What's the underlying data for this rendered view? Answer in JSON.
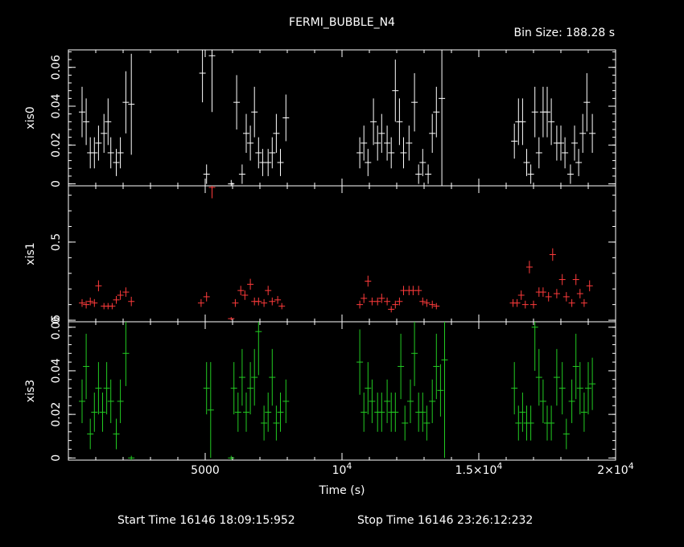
{
  "chart_data": {
    "type": "scatter",
    "title": "FERMI_BUBBLE_N4",
    "subtitle": "Bin Size: 188.28 s",
    "footer": {
      "start": "Start Time 16146 18:09:15:952",
      "stop": "Stop Time 16146 23:26:12:232"
    },
    "xlabel": "Time (s)",
    "xlim": [
      0,
      20000
    ],
    "xticks": [
      {
        "value": 5000,
        "label": "5000"
      },
      {
        "value": 10000,
        "label": "10^4"
      },
      {
        "value": 15000,
        "label": "1.5×10^4"
      },
      {
        "value": 20000,
        "label": "2×10^4"
      }
    ],
    "x_minor_ticks": [
      1000,
      2000,
      3000,
      4000,
      6000,
      7000,
      8000,
      9000,
      11000,
      12000,
      13000,
      14000,
      16000,
      17000,
      18000,
      19000
    ],
    "panels": [
      {
        "name": "xis0",
        "ylabel": "xis0",
        "color": "#ffffff",
        "ylim": [
          -0.001,
          0.069
        ],
        "yticks": [
          {
            "value": 0,
            "label": "0"
          },
          {
            "value": 0.02,
            "label": "0.02"
          },
          {
            "value": 0.04,
            "label": "0.04"
          },
          {
            "value": 0.06,
            "label": "0.06"
          }
        ],
        "points": [
          [
            500,
            0.037,
            0.013
          ],
          [
            650,
            0.032,
            0.012
          ],
          [
            800,
            0.016,
            0.008
          ],
          [
            950,
            0.016,
            0.008
          ],
          [
            1100,
            0.021,
            0.009
          ],
          [
            1300,
            0.026,
            0.01
          ],
          [
            1450,
            0.032,
            0.012
          ],
          [
            1550,
            0.016,
            0.008
          ],
          [
            1750,
            0.011,
            0.007
          ],
          [
            1900,
            0.016,
            0.008
          ],
          [
            2100,
            0.042,
            0.016
          ],
          [
            2300,
            0.041,
            0.026
          ],
          [
            4900,
            0.057,
            0.015
          ],
          [
            5050,
            0.005,
            0.005
          ],
          [
            5250,
            0.066,
            0.029
          ],
          [
            5950,
            0.0,
            0.002
          ],
          [
            6150,
            0.042,
            0.014
          ],
          [
            6350,
            0.005,
            0.005
          ],
          [
            6500,
            0.026,
            0.01
          ],
          [
            6650,
            0.021,
            0.009
          ],
          [
            6800,
            0.037,
            0.013
          ],
          [
            6950,
            0.016,
            0.008
          ],
          [
            7100,
            0.011,
            0.007
          ],
          [
            7300,
            0.011,
            0.007
          ],
          [
            7450,
            0.016,
            0.008
          ],
          [
            7600,
            0.026,
            0.01
          ],
          [
            7750,
            0.011,
            0.007
          ],
          [
            7950,
            0.034,
            0.012
          ],
          [
            10650,
            0.016,
            0.008
          ],
          [
            10800,
            0.021,
            0.009
          ],
          [
            10950,
            0.011,
            0.007
          ],
          [
            11150,
            0.032,
            0.012
          ],
          [
            11300,
            0.021,
            0.009
          ],
          [
            11450,
            0.026,
            0.01
          ],
          [
            11650,
            0.021,
            0.009
          ],
          [
            11800,
            0.016,
            0.008
          ],
          [
            11950,
            0.048,
            0.016
          ],
          [
            12100,
            0.032,
            0.012
          ],
          [
            12250,
            0.016,
            0.008
          ],
          [
            12450,
            0.021,
            0.009
          ],
          [
            12650,
            0.042,
            0.015
          ],
          [
            12800,
            0.005,
            0.005
          ],
          [
            12950,
            0.011,
            0.007
          ],
          [
            13150,
            0.005,
            0.005
          ],
          [
            13300,
            0.026,
            0.01
          ],
          [
            13450,
            0.037,
            0.013
          ],
          [
            13650,
            0.044,
            0.045
          ],
          [
            16300,
            0.022,
            0.009
          ],
          [
            16450,
            0.032,
            0.012
          ],
          [
            16600,
            0.032,
            0.012
          ],
          [
            16750,
            0.011,
            0.007
          ],
          [
            16900,
            0.005,
            0.005
          ],
          [
            17050,
            0.037,
            0.013
          ],
          [
            17200,
            0.016,
            0.008
          ],
          [
            17350,
            0.037,
            0.013
          ],
          [
            17500,
            0.037,
            0.013
          ],
          [
            17650,
            0.032,
            0.012
          ],
          [
            17850,
            0.021,
            0.009
          ],
          [
            18000,
            0.021,
            0.009
          ],
          [
            18150,
            0.016,
            0.008
          ],
          [
            18350,
            0.005,
            0.005
          ],
          [
            18500,
            0.021,
            0.009
          ],
          [
            18650,
            0.011,
            0.007
          ],
          [
            18800,
            0.026,
            0.01
          ],
          [
            18950,
            0.042,
            0.015
          ],
          [
            19150,
            0.026,
            0.01
          ]
        ]
      },
      {
        "name": "xis1",
        "ylabel": "xis1",
        "color": "#ff3b3b",
        "ylim": [
          -0.01,
          0.86
        ],
        "yticks": [
          {
            "value": 0,
            "label": "0"
          },
          {
            "value": 0.5,
            "label": "0.5"
          }
        ],
        "points": [
          [
            500,
            0.11,
            0.025
          ],
          [
            650,
            0.1,
            0.025
          ],
          [
            800,
            0.12,
            0.025
          ],
          [
            950,
            0.11,
            0.025
          ],
          [
            1100,
            0.22,
            0.035
          ],
          [
            1300,
            0.09,
            0.02
          ],
          [
            1450,
            0.09,
            0.02
          ],
          [
            1600,
            0.09,
            0.02
          ],
          [
            1750,
            0.13,
            0.025
          ],
          [
            1900,
            0.16,
            0.03
          ],
          [
            2100,
            0.18,
            0.03
          ],
          [
            2300,
            0.12,
            0.03
          ],
          [
            4850,
            0.11,
            0.025
          ],
          [
            5050,
            0.15,
            0.03
          ],
          [
            5250,
            0.85,
            0.07
          ],
          [
            5950,
            0.01,
            0.01
          ],
          [
            6100,
            0.11,
            0.025
          ],
          [
            6300,
            0.19,
            0.03
          ],
          [
            6450,
            0.16,
            0.03
          ],
          [
            6650,
            0.23,
            0.035
          ],
          [
            6800,
            0.12,
            0.025
          ],
          [
            6950,
            0.12,
            0.025
          ],
          [
            7150,
            0.11,
            0.025
          ],
          [
            7300,
            0.19,
            0.03
          ],
          [
            7450,
            0.12,
            0.025
          ],
          [
            7650,
            0.13,
            0.025
          ],
          [
            7800,
            0.09,
            0.02
          ],
          [
            10650,
            0.1,
            0.025
          ],
          [
            10800,
            0.14,
            0.03
          ],
          [
            10950,
            0.25,
            0.035
          ],
          [
            11100,
            0.12,
            0.025
          ],
          [
            11300,
            0.12,
            0.025
          ],
          [
            11450,
            0.14,
            0.03
          ],
          [
            11650,
            0.12,
            0.025
          ],
          [
            11800,
            0.07,
            0.02
          ],
          [
            11950,
            0.1,
            0.025
          ],
          [
            12100,
            0.12,
            0.025
          ],
          [
            12250,
            0.19,
            0.03
          ],
          [
            12450,
            0.19,
            0.03
          ],
          [
            12600,
            0.19,
            0.03
          ],
          [
            12800,
            0.19,
            0.03
          ],
          [
            12950,
            0.12,
            0.025
          ],
          [
            13100,
            0.11,
            0.025
          ],
          [
            13300,
            0.1,
            0.025
          ],
          [
            13450,
            0.09,
            0.02
          ],
          [
            16250,
            0.11,
            0.025
          ],
          [
            16400,
            0.11,
            0.025
          ],
          [
            16550,
            0.16,
            0.03
          ],
          [
            16700,
            0.1,
            0.025
          ],
          [
            16850,
            0.34,
            0.04
          ],
          [
            17000,
            0.1,
            0.025
          ],
          [
            17200,
            0.18,
            0.03
          ],
          [
            17350,
            0.18,
            0.03
          ],
          [
            17550,
            0.15,
            0.03
          ],
          [
            17700,
            0.42,
            0.04
          ],
          [
            17850,
            0.17,
            0.03
          ],
          [
            18050,
            0.26,
            0.035
          ],
          [
            18200,
            0.15,
            0.03
          ],
          [
            18400,
            0.11,
            0.025
          ],
          [
            18550,
            0.26,
            0.035
          ],
          [
            18700,
            0.17,
            0.03
          ],
          [
            18850,
            0.11,
            0.025
          ],
          [
            19050,
            0.22,
            0.035
          ]
        ]
      },
      {
        "name": "xis3",
        "ylabel": "xis3",
        "color": "#22cc22",
        "ylim": [
          -0.001,
          0.0625
        ],
        "yticks": [
          {
            "value": 0,
            "label": "0"
          },
          {
            "value": 0.02,
            "label": "0.02"
          },
          {
            "value": 0.04,
            "label": "0.04"
          },
          {
            "value": 0.06,
            "label": "0.06"
          }
        ],
        "points": [
          [
            500,
            0.026,
            0.01
          ],
          [
            650,
            0.042,
            0.015
          ],
          [
            800,
            0.011,
            0.007
          ],
          [
            950,
            0.021,
            0.009
          ],
          [
            1100,
            0.032,
            0.012
          ],
          [
            1250,
            0.021,
            0.009
          ],
          [
            1400,
            0.032,
            0.012
          ],
          [
            1550,
            0.026,
            0.01
          ],
          [
            1750,
            0.011,
            0.007
          ],
          [
            1900,
            0.026,
            0.01
          ],
          [
            2100,
            0.048,
            0.015
          ],
          [
            2300,
            0.0,
            0.001
          ],
          [
            5050,
            0.032,
            0.012
          ],
          [
            5200,
            0.022,
            0.022
          ],
          [
            5950,
            0.0,
            0.001
          ],
          [
            6050,
            0.032,
            0.012
          ],
          [
            6200,
            0.021,
            0.009
          ],
          [
            6350,
            0.037,
            0.013
          ],
          [
            6500,
            0.021,
            0.009
          ],
          [
            6650,
            0.032,
            0.012
          ],
          [
            6800,
            0.037,
            0.013
          ],
          [
            6950,
            0.058,
            0.02
          ],
          [
            7150,
            0.016,
            0.008
          ],
          [
            7300,
            0.021,
            0.009
          ],
          [
            7450,
            0.037,
            0.013
          ],
          [
            7600,
            0.016,
            0.008
          ],
          [
            7750,
            0.021,
            0.009
          ],
          [
            7950,
            0.026,
            0.01
          ],
          [
            10650,
            0.044,
            0.015
          ],
          [
            10800,
            0.021,
            0.009
          ],
          [
            10950,
            0.032,
            0.012
          ],
          [
            11100,
            0.026,
            0.01
          ],
          [
            11300,
            0.021,
            0.009
          ],
          [
            11450,
            0.021,
            0.009
          ],
          [
            11650,
            0.026,
            0.01
          ],
          [
            11800,
            0.021,
            0.009
          ],
          [
            11950,
            0.021,
            0.009
          ],
          [
            12150,
            0.042,
            0.015
          ],
          [
            12300,
            0.016,
            0.008
          ],
          [
            12500,
            0.026,
            0.01
          ],
          [
            12650,
            0.048,
            0.015
          ],
          [
            12800,
            0.021,
            0.009
          ],
          [
            12950,
            0.021,
            0.009
          ],
          [
            13100,
            0.016,
            0.008
          ],
          [
            13300,
            0.026,
            0.01
          ],
          [
            13450,
            0.042,
            0.015
          ],
          [
            13600,
            0.031,
            0.012
          ],
          [
            13750,
            0.045,
            0.045
          ],
          [
            16300,
            0.032,
            0.012
          ],
          [
            16450,
            0.016,
            0.008
          ],
          [
            16600,
            0.021,
            0.009
          ],
          [
            16750,
            0.016,
            0.008
          ],
          [
            16900,
            0.016,
            0.008
          ],
          [
            17050,
            0.06,
            0.02
          ],
          [
            17200,
            0.037,
            0.013
          ],
          [
            17350,
            0.026,
            0.01
          ],
          [
            17500,
            0.016,
            0.008
          ],
          [
            17650,
            0.016,
            0.008
          ],
          [
            17850,
            0.037,
            0.013
          ],
          [
            18050,
            0.032,
            0.012
          ],
          [
            18200,
            0.011,
            0.007
          ],
          [
            18400,
            0.026,
            0.01
          ],
          [
            18550,
            0.042,
            0.015
          ],
          [
            18700,
            0.032,
            0.012
          ],
          [
            18850,
            0.021,
            0.009
          ],
          [
            19000,
            0.032,
            0.012
          ],
          [
            19150,
            0.034,
            0.012
          ]
        ]
      }
    ]
  }
}
